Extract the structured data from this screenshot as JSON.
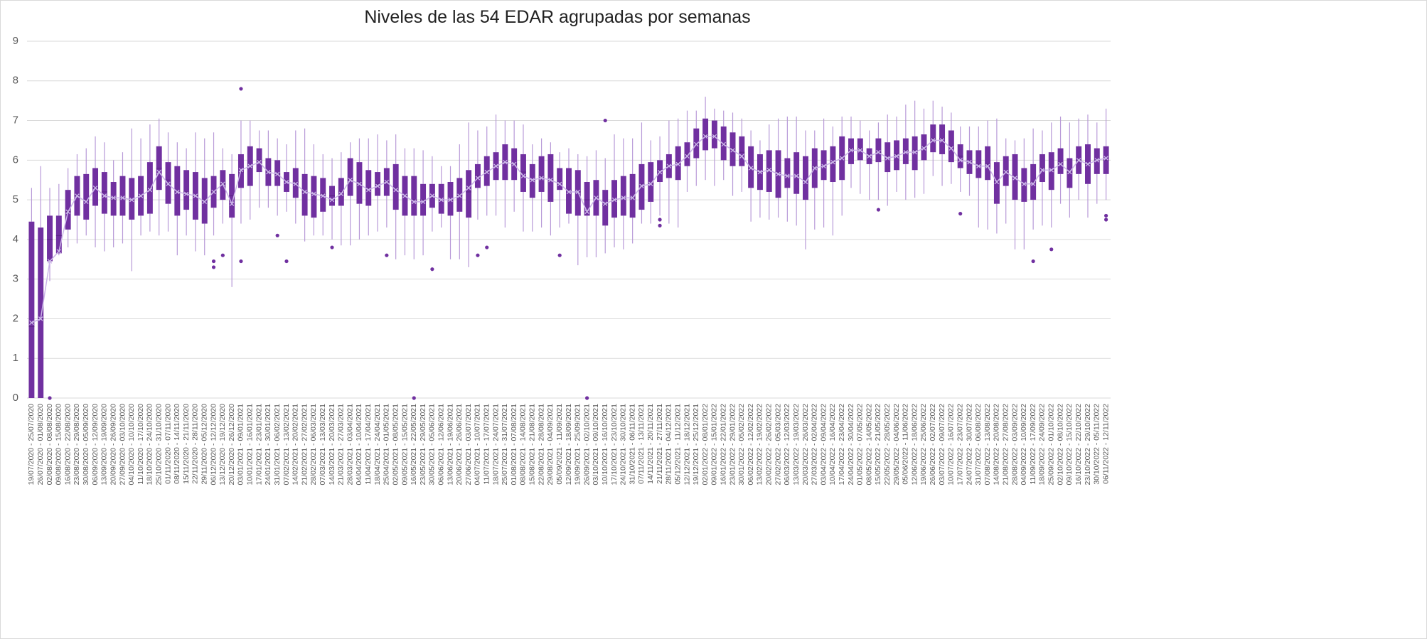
{
  "chart_data": {
    "type": "box",
    "title": "Niveles de las 54 EDAR agrupadas por semanas",
    "color": "#7030a0",
    "whisker_color": "#b89ad8",
    "mean_color": "#cbb5e8",
    "ylim": [
      0,
      9
    ],
    "yticks": [
      0,
      1,
      2,
      3,
      4,
      5,
      6,
      7,
      8,
      9
    ],
    "grid": true,
    "categories": [
      "19/07/2020 - 25/07/2020",
      "26/07/2020 - 01/08/2020",
      "02/08/2020 - 08/08/2020",
      "09/08/2020 - 15/08/2020",
      "16/08/2020 - 22/08/2020",
      "23/08/2020 - 29/08/2020",
      "30/08/2020 - 05/09/2020",
      "06/09/2020 - 12/09/2020",
      "13/09/2020 - 19/09/2020",
      "20/09/2020 - 26/09/2020",
      "27/09/2020 - 03/10/2020",
      "04/10/2020 - 10/10/2020",
      "11/10/2020 - 17/10/2020",
      "18/10/2020 - 24/10/2020",
      "25/10/2020 - 31/10/2020",
      "01/11/2020 - 07/11/2020",
      "08/11/2020 - 14/11/2020",
      "15/11/2020 - 21/11/2020",
      "22/11/2020 - 28/11/2020",
      "29/11/2020 - 05/12/2020",
      "06/12/2020 - 12/12/2020",
      "13/12/2020 - 19/12/2020",
      "20/12/2020 - 26/12/2020",
      "03/01/2021 - 09/01/2021",
      "10/01/2021 - 16/01/2021",
      "17/01/2021 - 23/01/2021",
      "24/01/2021 - 30/01/2021",
      "31/01/2021 - 06/02/2021",
      "07/02/2021 - 13/02/2021",
      "14/02/2021 - 20/02/2021",
      "21/02/2021 - 27/02/2021",
      "28/02/2021 - 06/03/2021",
      "07/03/2021 - 13/03/2021",
      "14/03/2021 - 20/03/2021",
      "21/03/2021 - 27/03/2021",
      "28/03/2021 - 03/04/2021",
      "04/04/2021 - 10/04/2021",
      "11/04/2021 - 17/04/2021",
      "18/04/2021 - 24/04/2021",
      "25/04/2021 - 01/05/2021",
      "02/05/2021 - 08/05/2021",
      "09/05/2021 - 15/05/2021",
      "16/05/2021 - 22/05/2021",
      "23/05/2021 - 29/05/2021",
      "30/05/2021 - 05/06/2021",
      "06/06/2021 - 12/06/2021",
      "13/06/2021 - 19/06/2021",
      "20/06/2021 - 26/06/2021",
      "27/06/2021 - 03/07/2021",
      "04/07/2021 - 10/07/2021",
      "11/07/2021 - 17/07/2021",
      "18/07/2021 - 24/07/2021",
      "25/07/2021 - 31/07/2021",
      "01/08/2021 - 07/08/2021",
      "08/08/2021 - 14/08/2021",
      "15/08/2021 - 21/08/2021",
      "22/08/2021 - 28/08/2021",
      "29/08/2021 - 04/09/2021",
      "05/09/2021 - 11/09/2021",
      "12/09/2021 - 18/09/2021",
      "19/09/2021 - 25/09/2021",
      "26/09/2021 - 02/10/2021",
      "03/10/2021 - 09/10/2021",
      "10/10/2021 - 16/10/2021",
      "17/10/2021 - 23/10/2021",
      "24/10/2021 - 30/10/2021",
      "31/10/2021 - 06/11/2021",
      "07/11/2021 - 13/11/2021",
      "14/11/2021 - 20/11/2021",
      "21/11/2021 - 27/11/2021",
      "28/11/2021 - 04/12/2021",
      "05/12/2021 - 11/12/2021",
      "12/12/2021 - 18/12/2021",
      "19/12/2021 - 25/12/2021",
      "02/01/2022 - 08/01/2022",
      "09/01/2022 - 15/01/2022",
      "16/01/2022 - 22/01/2022",
      "23/01/2022 - 29/01/2022",
      "30/01/2022 - 05/02/2022",
      "06/02/2022 - 12/02/2022",
      "13/02/2022 - 19/02/2022",
      "20/02/2022 - 26/02/2022",
      "27/02/2022 - 05/03/2022",
      "06/03/2022 - 12/03/2022",
      "13/03/2022 - 19/03/2022",
      "20/03/2022 - 26/03/2022",
      "27/03/2022 - 02/04/2022",
      "03/04/2022 - 09/04/2022",
      "10/04/2022 - 16/04/2022",
      "17/04/2022 - 23/04/2022",
      "24/04/2022 - 30/04/2022",
      "01/05/2022 - 07/05/2022",
      "08/05/2022 - 14/05/2022",
      "15/05/2022 - 21/05/2022",
      "22/05/2022 - 28/05/2022",
      "29/05/2022 - 04/06/2022",
      "05/06/2022 - 11/06/2022",
      "12/06/2022 - 18/06/2022",
      "19/06/2022 - 25/06/2022",
      "26/06/2022 - 02/07/2022",
      "03/07/2022 - 09/07/2022",
      "10/07/2022 - 16/07/2022",
      "17/07/2022 - 23/07/2022",
      "24/07/2022 - 30/07/2022",
      "31/07/2022 - 06/08/2022",
      "07/08/2022 - 13/08/2022",
      "14/08/2022 - 20/08/2022",
      "21/08/2022 - 27/08/2022",
      "28/08/2022 - 03/09/2022",
      "04/09/2022 - 10/09/2022",
      "11/09/2022 - 17/09/2022",
      "18/09/2022 - 24/09/2022",
      "25/09/2022 - 01/10/2022",
      "02/10/2022 - 08/10/2022",
      "09/10/2022 - 15/10/2022",
      "16/10/2022 - 22/10/2022",
      "23/10/2022 - 29/10/2022",
      "30/10/2022 - 05/11/2022",
      "06/11/2022 - 12/11/2022"
    ],
    "min": [
      0,
      0,
      2.95,
      3.6,
      3.8,
      3.9,
      4.1,
      3.8,
      3.7,
      3.8,
      3.9,
      3.2,
      4.1,
      4.2,
      4.1,
      4.2,
      3.6,
      4.1,
      3.7,
      3.6,
      4.1,
      4.4,
      2.8,
      4.4,
      4.5,
      4.8,
      4.8,
      4.6,
      4.7,
      4.4,
      3.95,
      4.1,
      4.1,
      4.0,
      3.85,
      3.85,
      4.0,
      4.1,
      4.2,
      4.3,
      3.5,
      3.6,
      3.5,
      3.6,
      4.2,
      4.3,
      3.5,
      3.5,
      3.3,
      4.5,
      4.6,
      4.6,
      4.3,
      4.7,
      4.2,
      4.2,
      4.3,
      4.1,
      4.3,
      4.4,
      3.35,
      3.55,
      3.55,
      3.65,
      3.8,
      3.75,
      3.9,
      4.4,
      4.4,
      4.6,
      4.4,
      4.3,
      5.2,
      5.35,
      5.5,
      5.35,
      5.5,
      5.1,
      5.2,
      4.45,
      4.55,
      4.5,
      4.55,
      4.45,
      4.35,
      3.75,
      4.25,
      4.3,
      4.1,
      4.6,
      5.3,
      5.15,
      5.0,
      5.0,
      4.85,
      5.2,
      5.0,
      5.05,
      5.15,
      5.6,
      5.35,
      5.4,
      5.2,
      5.1,
      4.3,
      4.25,
      4.15,
      4.4,
      3.75,
      3.75,
      4.25,
      4.35,
      4.3,
      4.9,
      4.55,
      5.0,
      4.55,
      4.9,
      5.0
    ],
    "q1": [
      0,
      0,
      3.45,
      3.65,
      4.25,
      4.6,
      4.5,
      4.85,
      4.65,
      4.6,
      4.6,
      4.5,
      4.6,
      4.65,
      5.25,
      4.9,
      4.6,
      4.75,
      4.5,
      4.4,
      4.8,
      5.0,
      4.55,
      5.3,
      5.35,
      5.7,
      5.35,
      5.35,
      5.2,
      5.05,
      4.6,
      4.55,
      4.7,
      4.85,
      4.85,
      5.1,
      4.9,
      4.85,
      5.1,
      5.1,
      4.75,
      4.6,
      4.6,
      4.6,
      4.8,
      4.65,
      4.6,
      4.7,
      4.55,
      5.3,
      5.35,
      5.5,
      5.5,
      5.5,
      5.2,
      5.05,
      5.2,
      4.95,
      5.25,
      4.65,
      4.6,
      4.6,
      4.6,
      4.35,
      4.55,
      4.6,
      4.55,
      4.75,
      4.95,
      5.45,
      5.55,
      5.5,
      5.85,
      6.05,
      6.25,
      6.3,
      6.0,
      5.85,
      5.85,
      5.3,
      5.25,
      5.2,
      5.05,
      5.3,
      5.15,
      5.0,
      5.3,
      5.5,
      5.45,
      5.5,
      5.9,
      6.0,
      5.9,
      5.95,
      5.7,
      5.75,
      5.9,
      5.75,
      6.0,
      6.2,
      6.15,
      5.95,
      5.8,
      5.65,
      5.55,
      5.5,
      4.9,
      5.35,
      5.0,
      4.95,
      5.0,
      5.45,
      5.25,
      5.65,
      5.3,
      5.65,
      5.4,
      5.65,
      5.65
    ],
    "median": [
      1.8,
      2.0,
      4.0,
      4.1,
      4.7,
      5.1,
      5.0,
      5.3,
      5.2,
      5.0,
      5.05,
      5.0,
      5.1,
      5.3,
      5.8,
      5.5,
      5.2,
      5.2,
      5.1,
      5.0,
      5.2,
      5.4,
      5.1,
      5.7,
      5.8,
      6.0,
      5.7,
      5.65,
      5.5,
      5.45,
      5.2,
      5.15,
      5.15,
      5.1,
      5.2,
      5.5,
      5.45,
      5.3,
      5.4,
      5.45,
      5.3,
      5.1,
      5.0,
      5.0,
      5.05,
      5.0,
      5.0,
      5.1,
      5.2,
      5.6,
      5.7,
      5.85,
      5.95,
      5.9,
      5.7,
      5.5,
      5.6,
      5.5,
      5.45,
      5.25,
      5.2,
      5.0,
      5.05,
      4.85,
      5.0,
      5.05,
      5.05,
      5.4,
      5.4,
      5.75,
      5.85,
      5.95,
      6.15,
      6.4,
      6.65,
      6.65,
      6.4,
      6.3,
      6.2,
      5.8,
      5.7,
      5.75,
      5.7,
      5.6,
      5.6,
      5.5,
      5.85,
      5.85,
      5.95,
      6.1,
      6.3,
      6.3,
      6.15,
      6.2,
      6.1,
      6.15,
      6.25,
      6.25,
      6.35,
      6.55,
      6.55,
      6.35,
      6.1,
      5.95,
      5.9,
      5.9,
      5.45,
      5.7,
      5.6,
      5.4,
      5.45,
      5.8,
      5.75,
      5.95,
      5.7,
      6.0,
      5.9,
      6.0,
      6.0
    ],
    "q3": [
      4.45,
      4.3,
      4.6,
      4.6,
      5.25,
      5.6,
      5.65,
      5.8,
      5.7,
      5.45,
      5.6,
      5.55,
      5.6,
      5.95,
      6.35,
      5.95,
      5.85,
      5.75,
      5.7,
      5.55,
      5.6,
      5.75,
      5.65,
      6.15,
      6.35,
      6.3,
      6.05,
      6.0,
      5.7,
      5.8,
      5.65,
      5.6,
      5.55,
      5.35,
      5.55,
      6.05,
      5.95,
      5.75,
      5.7,
      5.8,
      5.9,
      5.6,
      5.6,
      5.4,
      5.4,
      5.4,
      5.45,
      5.55,
      5.75,
      5.9,
      6.1,
      6.2,
      6.4,
      6.3,
      6.15,
      5.9,
      6.1,
      6.15,
      5.8,
      5.8,
      5.75,
      5.45,
      5.5,
      5.25,
      5.5,
      5.6,
      5.65,
      5.9,
      5.95,
      6.0,
      6.15,
      6.35,
      6.45,
      6.8,
      7.05,
      7.0,
      6.85,
      6.7,
      6.6,
      6.35,
      6.15,
      6.25,
      6.25,
      6.05,
      6.2,
      6.1,
      6.3,
      6.25,
      6.35,
      6.6,
      6.55,
      6.55,
      6.3,
      6.55,
      6.45,
      6.5,
      6.55,
      6.6,
      6.65,
      6.9,
      6.9,
      6.75,
      6.4,
      6.25,
      6.25,
      6.35,
      5.95,
      6.1,
      6.15,
      5.8,
      5.9,
      6.15,
      6.2,
      6.3,
      6.05,
      6.35,
      6.4,
      6.3,
      6.35
    ],
    "max": [
      5.3,
      5.85,
      5.3,
      5.4,
      5.8,
      6.15,
      6.3,
      6.6,
      6.45,
      6.0,
      6.2,
      6.8,
      6.55,
      6.9,
      7.05,
      6.7,
      6.45,
      6.3,
      6.7,
      6.55,
      6.7,
      6.3,
      6.15,
      7.0,
      7.0,
      6.75,
      6.75,
      6.55,
      6.4,
      6.75,
      6.8,
      6.4,
      6.15,
      6.05,
      6.2,
      6.45,
      6.55,
      6.55,
      6.65,
      6.5,
      6.65,
      6.3,
      6.3,
      6.25,
      6.1,
      5.85,
      5.85,
      6.4,
      6.95,
      6.75,
      6.85,
      7.15,
      7.0,
      7.0,
      6.9,
      6.4,
      6.55,
      6.45,
      6.2,
      6.3,
      6.15,
      6.1,
      6.25,
      6.05,
      6.65,
      6.55,
      6.55,
      6.95,
      6.5,
      6.6,
      7.0,
      7.05,
      7.25,
      7.25,
      7.6,
      7.3,
      7.25,
      7.2,
      7.05,
      6.75,
      6.5,
      6.9,
      7.05,
      7.1,
      7.1,
      6.75,
      6.75,
      7.05,
      6.85,
      7.1,
      7.1,
      7.0,
      6.75,
      6.95,
      7.15,
      7.1,
      7.4,
      7.5,
      7.3,
      7.5,
      7.35,
      7.2,
      6.85,
      6.85,
      6.85,
      7.0,
      7.05,
      6.55,
      6.5,
      6.55,
      6.8,
      6.75,
      6.95,
      7.1,
      6.95,
      7.05,
      7.15,
      6.95,
      7.3
    ],
    "mean": [
      1.9,
      2.0,
      3.45,
      3.7,
      4.7,
      5.1,
      4.95,
      5.3,
      5.1,
      5.05,
      5.05,
      5.0,
      5.1,
      5.25,
      5.7,
      5.4,
      5.2,
      5.15,
      5.1,
      4.95,
      5.2,
      5.4,
      4.9,
      5.75,
      5.85,
      5.95,
      5.7,
      5.65,
      5.45,
      5.4,
      5.2,
      5.15,
      5.1,
      5.0,
      5.15,
      5.5,
      5.4,
      5.25,
      5.35,
      5.45,
      5.25,
      5.1,
      4.95,
      4.95,
      5.1,
      5.0,
      5.0,
      5.1,
      5.3,
      5.55,
      5.7,
      5.85,
      5.95,
      5.9,
      5.6,
      5.5,
      5.55,
      5.5,
      5.4,
      5.2,
      5.2,
      4.7,
      5.05,
      4.9,
      5.0,
      5.05,
      5.05,
      5.35,
      5.4,
      5.7,
      5.85,
      5.9,
      6.1,
      6.4,
      6.6,
      6.6,
      6.4,
      6.25,
      6.1,
      5.8,
      5.7,
      5.75,
      5.65,
      5.6,
      5.6,
      5.45,
      5.8,
      5.85,
      5.95,
      6.05,
      6.25,
      6.25,
      6.1,
      6.2,
      6.05,
      6.1,
      6.2,
      6.2,
      6.3,
      6.5,
      6.5,
      6.3,
      6.0,
      5.95,
      5.85,
      5.85,
      5.45,
      5.7,
      5.55,
      5.4,
      5.4,
      5.75,
      5.75,
      5.9,
      5.7,
      6.0,
      5.9,
      6.0,
      6.05
    ],
    "outliers": [
      [],
      [],
      [
        0
      ],
      [],
      [],
      [],
      [],
      [],
      [],
      [],
      [],
      [],
      [],
      [],
      [],
      [],
      [],
      [],
      [],
      [],
      [
        3.45,
        3.3
      ],
      [
        3.6
      ],
      [],
      [
        7.8,
        3.45
      ],
      [],
      [],
      [],
      [
        4.1
      ],
      [
        3.45
      ],
      [],
      [],
      [],
      [],
      [
        3.8
      ],
      [],
      [],
      [],
      [],
      [],
      [
        3.6
      ],
      [],
      [],
      [
        0
      ],
      [],
      [
        3.25
      ],
      [],
      [],
      [],
      [],
      [
        3.6
      ],
      [
        3.8
      ],
      [],
      [],
      [],
      [],
      [],
      [],
      [],
      [
        3.6
      ],
      [],
      [],
      [
        0
      ],
      [],
      [
        7.0
      ],
      [],
      [],
      [],
      [],
      [],
      [
        4.5,
        4.35
      ],
      [],
      [],
      [],
      [],
      [],
      [],
      [],
      [],
      [],
      [],
      [],
      [],
      [],
      [],
      [],
      [],
      [],
      [],
      [],
      [],
      [],
      [],
      [],
      [
        4.75
      ],
      [],
      [],
      [],
      [],
      [],
      [],
      [],
      [],
      [
        4.65
      ],
      [],
      [],
      [],
      [],
      [],
      [],
      [],
      [
        3.45
      ],
      [],
      [
        3.75
      ],
      [],
      [],
      [],
      [],
      [],
      [
        4.6,
        4.5
      ]
    ]
  }
}
